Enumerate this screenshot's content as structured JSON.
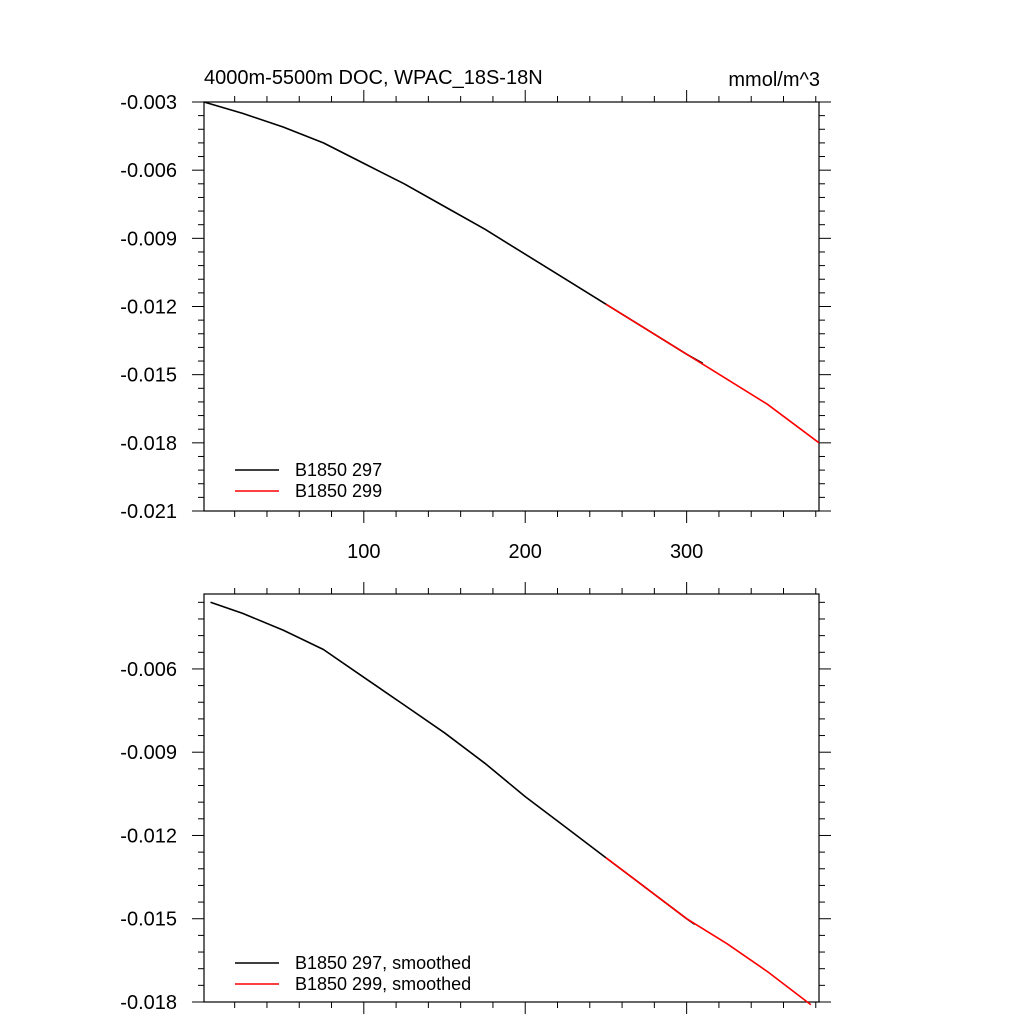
{
  "figure": {
    "title_left": "4000m-5500m DOC, WPAC_18S-18N",
    "title_right": "mmol/m^3"
  },
  "chart_data": [
    {
      "type": "line",
      "title": "4000m-5500m DOC, WPAC_18S-18N",
      "units": "mmol/m^3",
      "xlim": [
        1,
        382
      ],
      "ylim": [
        -0.021,
        -0.003
      ],
      "xticks": [
        100,
        200,
        300
      ],
      "xtick_labels": [
        "100",
        "200",
        "300"
      ],
      "yticks": [
        -0.003,
        -0.006,
        -0.009,
        -0.012,
        -0.015,
        -0.018,
        -0.021
      ],
      "ytick_labels": [
        "-0.003",
        "-0.006",
        "-0.009",
        "-0.012",
        "-0.015",
        "-0.018",
        "-0.021"
      ],
      "grid": false,
      "legend_position": "bottom-left",
      "colors": [
        "#000000",
        "#ff0000"
      ],
      "series": [
        {
          "name": "B1850 297",
          "color": "#000000",
          "x": [
            1,
            25,
            50,
            75,
            100,
            125,
            150,
            175,
            200,
            225,
            250,
            275,
            300,
            310
          ],
          "y": [
            -0.003,
            -0.0035,
            -0.0041,
            -0.0048,
            -0.0057,
            -0.0066,
            -0.0076,
            -0.0086,
            -0.0097,
            -0.0108,
            -0.0119,
            -0.013,
            -0.0141,
            -0.0145
          ]
        },
        {
          "name": "B1850 299",
          "color": "#ff0000",
          "x": [
            250,
            275,
            300,
            325,
            350,
            382
          ],
          "y": [
            -0.0119,
            -0.013,
            -0.0141,
            -0.0152,
            -0.0163,
            -0.018
          ]
        }
      ]
    },
    {
      "type": "line",
      "xlim": [
        1,
        382
      ],
      "ylim": [
        -0.018,
        -0.0033
      ],
      "xticks": [
        100,
        200,
        300
      ],
      "yticks": [
        -0.006,
        -0.009,
        -0.012,
        -0.015,
        -0.018
      ],
      "ytick_labels": [
        "-0.006",
        "-0.009",
        "-0.012",
        "-0.015",
        "-0.018"
      ],
      "grid": false,
      "legend_position": "bottom-left",
      "colors": [
        "#000000",
        "#ff0000"
      ],
      "series": [
        {
          "name": "B1850 297, smoothed",
          "color": "#000000",
          "x": [
            5,
            25,
            50,
            75,
            100,
            125,
            150,
            175,
            200,
            225,
            250,
            275,
            300,
            305
          ],
          "y": [
            -0.0036,
            -0.004,
            -0.0046,
            -0.0053,
            -0.0063,
            -0.0073,
            -0.0083,
            -0.0094,
            -0.0106,
            -0.0117,
            -0.0128,
            -0.0139,
            -0.015,
            -0.0152
          ]
        },
        {
          "name": "B1850 299, smoothed",
          "color": "#ff0000",
          "x": [
            250,
            275,
            300,
            325,
            350,
            377
          ],
          "y": [
            -0.0128,
            -0.0139,
            -0.015,
            -0.0159,
            -0.0169,
            -0.0181
          ]
        }
      ]
    }
  ]
}
